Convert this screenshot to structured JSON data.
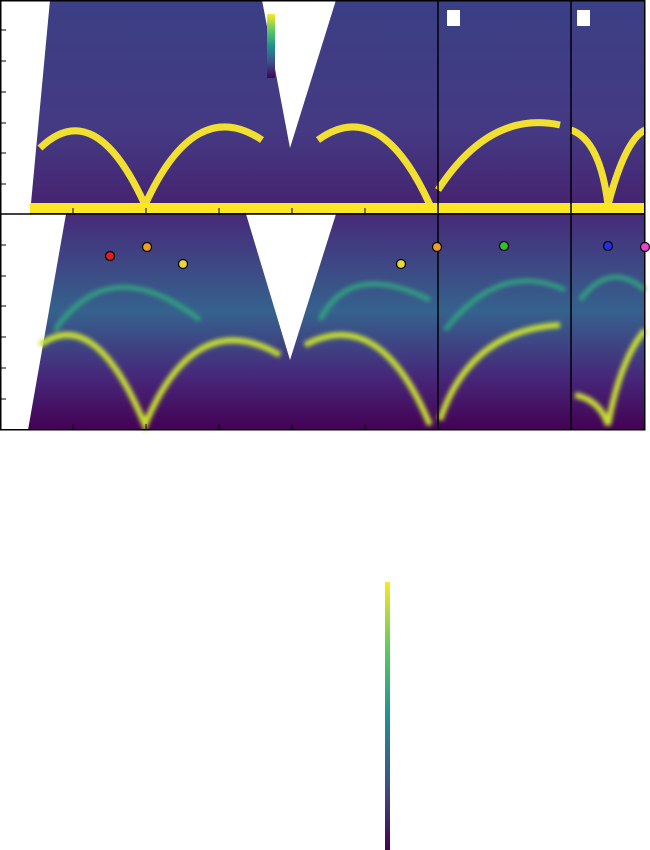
{
  "markers": [
    {
      "color": "#e02020"
    },
    {
      "color": "#f0a020"
    },
    {
      "color": "#e8d830"
    },
    {
      "color": "#e8d830"
    },
    {
      "color": "#f0a020"
    },
    {
      "color": "#30c030"
    },
    {
      "color": "#2030e0"
    },
    {
      "color": "#f040d0"
    }
  ]
}
